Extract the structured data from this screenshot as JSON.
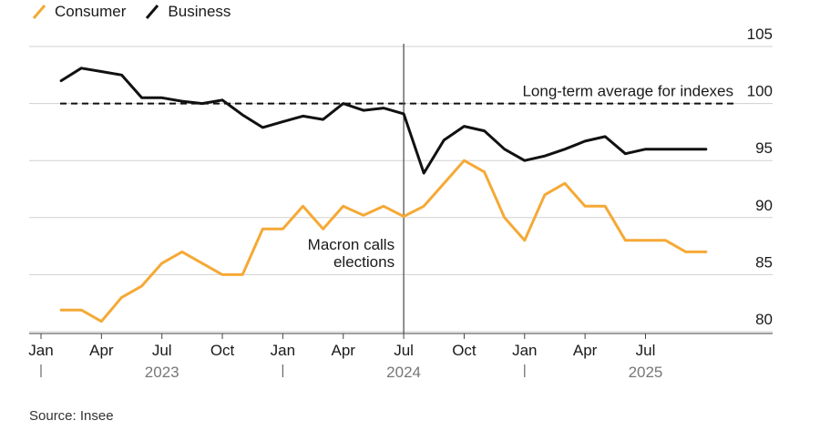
{
  "legend": {
    "consumer_label": "Consumer",
    "business_label": "Business"
  },
  "source": "Source: Insee",
  "colors": {
    "consumer": "#f5a935",
    "business": "#111111",
    "grid": "#d0d0d0",
    "axis": "#444444"
  },
  "chart_data": {
    "type": "line",
    "ylim": [
      80,
      105
    ],
    "yticks": [
      80,
      85,
      90,
      95,
      100,
      105
    ],
    "grid": true,
    "legend_position": "top-left",
    "x_range": [
      "2023-01",
      "2025-12"
    ],
    "month_ticks": [
      {
        "x": "2023-01",
        "label": "Jan"
      },
      {
        "x": "2023-04",
        "label": "Apr"
      },
      {
        "x": "2023-07",
        "label": "Jul"
      },
      {
        "x": "2023-10",
        "label": "Oct"
      },
      {
        "x": "2024-01",
        "label": "Jan"
      },
      {
        "x": "2024-04",
        "label": "Apr"
      },
      {
        "x": "2024-07",
        "label": "Jul"
      },
      {
        "x": "2024-10",
        "label": "Oct"
      },
      {
        "x": "2025-01",
        "label": "Jan"
      },
      {
        "x": "2025-04",
        "label": "Apr"
      },
      {
        "x": "2025-07",
        "label": "Jul"
      }
    ],
    "year_labels": [
      {
        "x": "2023-07",
        "label": "2023"
      },
      {
        "x": "2024-07",
        "label": "2024"
      },
      {
        "x": "2025-07",
        "label": "2025"
      }
    ],
    "year_separators": [
      "2023-01",
      "2024-01",
      "2025-01"
    ],
    "reference_line": {
      "y": 100,
      "label": "Long-term average for indexes"
    },
    "event": {
      "x": "2024-07",
      "label_lines": [
        "Macron calls",
        "elections"
      ]
    },
    "series": [
      {
        "name": "Business",
        "color": "#111111",
        "x": [
          "2023-02",
          "2023-03",
          "2023-04",
          "2023-05",
          "2023-06",
          "2023-07",
          "2023-08",
          "2023-09",
          "2023-10",
          "2023-11",
          "2023-12",
          "2024-01",
          "2024-02",
          "2024-03",
          "2024-04",
          "2024-05",
          "2024-06",
          "2024-07",
          "2024-08",
          "2024-09",
          "2024-10",
          "2024-11",
          "2024-12",
          "2025-01",
          "2025-02",
          "2025-03",
          "2025-04",
          "2025-05",
          "2025-06",
          "2025-07",
          "2025-08",
          "2025-09",
          "2025-10"
        ],
        "values": [
          102.0,
          103.1,
          102.8,
          102.5,
          100.5,
          100.5,
          100.2,
          100.0,
          100.3,
          99.0,
          97.9,
          98.4,
          98.9,
          98.6,
          100.0,
          99.4,
          99.6,
          99.1,
          93.9,
          96.8,
          98.0,
          97.6,
          96.0,
          95.0,
          95.4,
          96.0,
          96.7,
          97.1,
          95.6,
          96.0,
          96.0,
          96.0,
          96.0
        ]
      },
      {
        "name": "Consumer",
        "color": "#f5a935",
        "x": [
          "2023-02",
          "2023-03",
          "2023-04",
          "2023-05",
          "2023-06",
          "2023-07",
          "2023-08",
          "2023-09",
          "2023-10",
          "2023-11",
          "2023-12",
          "2024-01",
          "2024-02",
          "2024-03",
          "2024-04",
          "2024-05",
          "2024-06",
          "2024-07",
          "2024-08",
          "2024-09",
          "2024-10",
          "2024-11",
          "2024-12",
          "2025-01",
          "2025-02",
          "2025-03",
          "2025-04",
          "2025-05",
          "2025-06",
          "2025-07",
          "2025-08",
          "2025-09",
          "2025-10"
        ],
        "values": [
          81.9,
          81.9,
          80.9,
          83.0,
          84.0,
          86.0,
          87.0,
          86.0,
          85.0,
          85.0,
          89.0,
          89.0,
          91.0,
          89.0,
          91.0,
          90.2,
          91.0,
          90.1,
          91.0,
          93.0,
          95.0,
          94.0,
          90.0,
          88.0,
          92.0,
          93.0,
          91.0,
          91.0,
          88.0,
          88.0,
          88.0,
          87.0,
          87.0
        ]
      }
    ]
  }
}
